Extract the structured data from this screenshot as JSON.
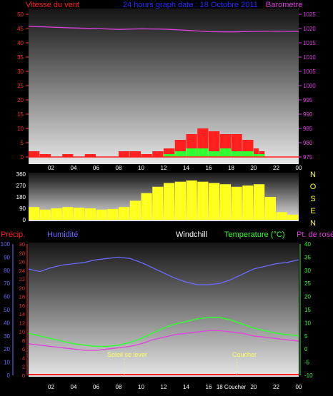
{
  "panels": {
    "wind": {
      "left_title": "Vitesse du vent",
      "title": "24 hours graph date : 18 Octobre 2011",
      "right_title": "Barometre"
    },
    "temp": {
      "precip_title": "Précip.",
      "humidity_title": "Humidité",
      "windchill_title": "Windchill",
      "temp_title": "Temperature (°C)",
      "dew_title": "Pt. de rosée",
      "sunrise_label": "Soleil se lever",
      "sunset_label": "Coucher",
      "sunset_axis_label": "18 Coucher"
    }
  },
  "colors": {
    "wind_gust": "#ff2020",
    "wind_avg": "#30ff30",
    "barometer": "#e040e0",
    "direction": "#ffff20",
    "humidity": "#6a6aff",
    "temperature": "#30ff30",
    "dewpoint": "#e040e0",
    "precip": "#ff2020"
  },
  "chart_data": [
    {
      "type": "bar",
      "name": "wind",
      "x_ticks": [
        "02",
        "04",
        "06",
        "08",
        "10",
        "12",
        "14",
        "16",
        "18",
        "20",
        "22",
        "00"
      ],
      "x_range": [
        0,
        24
      ],
      "y_left": {
        "ticks": [
          0,
          5,
          10,
          15,
          20,
          25,
          30,
          35,
          40,
          45,
          50
        ],
        "range": [
          0,
          50
        ]
      },
      "y_right": {
        "ticks": [
          975,
          980,
          985,
          990,
          995,
          1000,
          1005,
          1010,
          1015,
          1020,
          1025
        ],
        "range": [
          975,
          1025
        ]
      },
      "wind_gust": {
        "hours": [
          0,
          1,
          2,
          3,
          4,
          5,
          6,
          7,
          8,
          9,
          10,
          11,
          12,
          13,
          14,
          15,
          16,
          17,
          18,
          19,
          20,
          20.5
        ],
        "values": [
          2,
          1,
          0,
          1,
          0,
          1,
          0,
          0,
          2,
          2,
          1,
          2,
          3,
          6,
          8,
          10,
          9,
          8,
          8,
          6,
          3,
          2
        ]
      },
      "wind_avg": {
        "hours": [
          0,
          4,
          8,
          12,
          13,
          14,
          15,
          16,
          17,
          18,
          19,
          20,
          20.5
        ],
        "values": [
          0,
          0,
          0,
          1,
          2,
          3,
          3,
          2,
          3,
          2,
          2,
          1,
          1
        ]
      },
      "barometer": {
        "hours": [
          0,
          2,
          4,
          6,
          8,
          10,
          12,
          14,
          16,
          18,
          20,
          22,
          24
        ],
        "values": [
          1020.8,
          1020.5,
          1020.2,
          1020,
          1019.7,
          1019.9,
          1019.8,
          1019.4,
          1018.9,
          1018.8,
          1019,
          1019.1,
          1019.0
        ]
      }
    },
    {
      "type": "bar",
      "name": "wind-direction",
      "y_ticks": [
        0,
        90,
        180,
        270,
        360
      ],
      "compass": [
        "N",
        "O",
        "S",
        "E",
        "N"
      ],
      "hours": [
        0,
        1,
        2,
        3,
        4,
        5,
        6,
        7,
        8,
        9,
        10,
        11,
        12,
        13,
        14,
        15,
        16,
        17,
        18,
        19,
        20,
        21,
        22,
        23
      ],
      "values": [
        100,
        80,
        90,
        100,
        95,
        90,
        80,
        85,
        100,
        150,
        210,
        260,
        290,
        300,
        310,
        300,
        290,
        280,
        260,
        270,
        280,
        180,
        60,
        40
      ]
    },
    {
      "type": "line",
      "name": "temperature",
      "y_precip": {
        "ticks": [
          0,
          2,
          4,
          6,
          8,
          10,
          12,
          14,
          16,
          18,
          20,
          22,
          24,
          26,
          28,
          30
        ],
        "range": [
          0,
          30
        ]
      },
      "y_humidity": {
        "ticks": [
          0,
          10,
          20,
          30,
          40,
          50,
          60,
          70,
          80,
          90,
          100
        ],
        "range": [
          0,
          100
        ]
      },
      "y_temp": {
        "ticks": [
          -10,
          -5,
          0,
          5,
          10,
          15,
          20,
          25,
          30,
          35,
          40
        ],
        "range": [
          -10,
          40
        ]
      },
      "humidity": {
        "hours": [
          0,
          1,
          2,
          3,
          4,
          5,
          6,
          7,
          8,
          9,
          10,
          11,
          12,
          13,
          14,
          15,
          16,
          17,
          18,
          19,
          20,
          21,
          22,
          23,
          24
        ],
        "values": [
          81,
          79,
          82,
          84,
          85,
          86,
          88,
          89,
          90,
          89,
          86,
          82,
          78,
          74,
          71,
          69,
          69,
          70,
          73,
          77,
          81,
          83,
          85,
          86,
          88
        ]
      },
      "temperature": {
        "hours": [
          0,
          1,
          2,
          3,
          4,
          5,
          6,
          7,
          8,
          9,
          10,
          11,
          12,
          13,
          14,
          15,
          16,
          17,
          18,
          19,
          20,
          21,
          22,
          23,
          24
        ],
        "values": [
          6,
          5,
          4,
          3,
          2,
          1.5,
          1,
          1,
          1.5,
          2.5,
          4,
          6,
          8,
          9.5,
          10.5,
          11.5,
          12,
          12,
          11,
          9.5,
          8,
          7,
          6,
          5.5,
          5
        ]
      },
      "dewpoint": {
        "hours": [
          0,
          1,
          2,
          3,
          4,
          5,
          6,
          7,
          8,
          9,
          10,
          11,
          12,
          13,
          14,
          15,
          16,
          17,
          18,
          19,
          20,
          21,
          22,
          23,
          24
        ],
        "values": [
          2,
          1.5,
          1,
          0.5,
          0,
          -0.5,
          -0.5,
          0,
          0.5,
          1,
          2,
          3.5,
          4.5,
          5.5,
          6,
          6.5,
          7,
          7,
          6.5,
          6,
          5,
          4.5,
          4,
          3.5,
          3
        ]
      },
      "precipitation": {
        "hours": [
          0,
          24
        ],
        "values": [
          0,
          0
        ]
      },
      "sunrise_hour": 8.5,
      "sunset_hour": 18.5
    }
  ]
}
